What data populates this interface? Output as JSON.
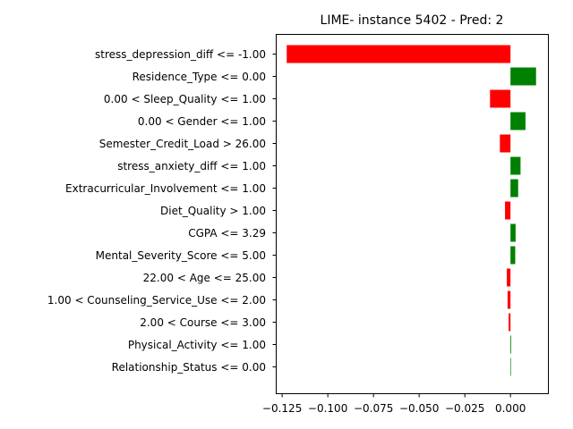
{
  "chart_data": {
    "type": "bar",
    "orientation": "horizontal",
    "title": "LIME- instance 5402 - Pred: 2",
    "xlabel": "",
    "ylabel": "",
    "categories": [
      "stress_depression_diff <= -1.00",
      "Residence_Type <= 0.00",
      "0.00 < Sleep_Quality <= 1.00",
      "0.00 < Gender <= 1.00",
      "Semester_Credit_Load > 26.00",
      "stress_anxiety_diff <= 1.00",
      "Extracurricular_Involvement <= 1.00",
      "Diet_Quality > 1.00",
      "CGPA <= 3.29",
      "Mental_Severity_Score <= 5.00",
      "22.00 < Age <= 25.00",
      "1.00 < Counseling_Service_Use <= 2.00",
      "2.00 < Course <= 3.00",
      "Physical_Activity <= 1.00",
      "Relationship_Status <= 0.00"
    ],
    "values": [
      -0.1225,
      0.014,
      -0.0112,
      0.0082,
      -0.0058,
      0.0055,
      0.0042,
      -0.003,
      0.0028,
      0.0026,
      -0.002,
      -0.0016,
      -0.001,
      0.0004,
      0.0
    ],
    "xlim": [
      -0.1285,
      0.0205
    ],
    "xticks": [
      -0.125,
      -0.1,
      -0.075,
      -0.05,
      -0.025,
      0.0
    ],
    "xtick_labels": [
      "−0.125",
      "−0.100",
      "−0.075",
      "−0.050",
      "−0.025",
      "0.000"
    ],
    "colors": {
      "positive": "#008000",
      "negative": "#ff0000"
    },
    "grid": false,
    "legend": "none"
  }
}
